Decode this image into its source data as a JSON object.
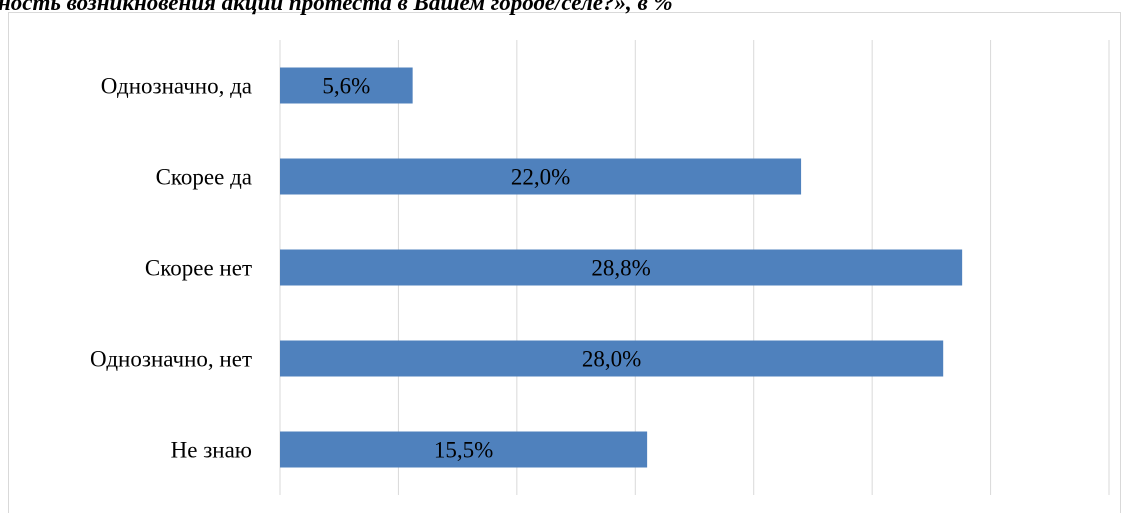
{
  "chart_data": {
    "type": "bar",
    "orientation": "horizontal",
    "title": "ность возникновения акций протеста в Вашем городе/селе?», в %",
    "categories": [
      "Однозначно, да",
      "Скорее да",
      "Скорее нет",
      "Однозначно, нет",
      "Не знаю"
    ],
    "values": [
      5.6,
      22.0,
      28.8,
      28.0,
      15.5
    ],
    "value_labels": [
      "5,6%",
      "22,0%",
      "28,8%",
      "28,0%",
      "15,5%"
    ],
    "color": "#4f81bd",
    "xlim": [
      0,
      35
    ],
    "xticks": [
      0,
      5,
      10,
      15,
      20,
      25,
      30,
      35
    ],
    "grid": true
  }
}
